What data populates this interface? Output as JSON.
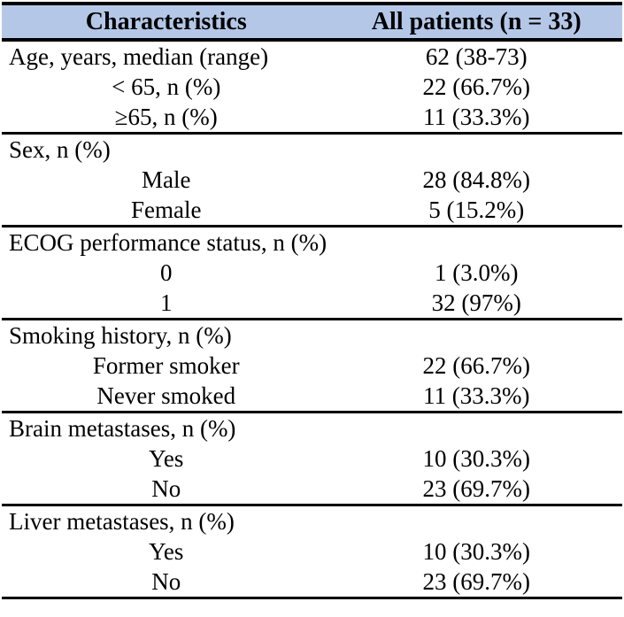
{
  "colors": {
    "header_bg": "#b4c7e7",
    "border_color": "#000000"
  },
  "table": {
    "header": {
      "col1": "Characteristics",
      "col2": "All patients (n = 33)"
    },
    "sections": [
      {
        "rows": [
          {
            "label": "Age, years, median (range)",
            "value": "62 (38-73)"
          },
          {
            "label": "< 65, n (%)",
            "value": "22 (66.7%)"
          },
          {
            "label": "≥65, n (%)",
            "value": "11 (33.3%)"
          }
        ]
      },
      {
        "rows": [
          {
            "label": "Sex, n (%)",
            "value": ""
          },
          {
            "label": "Male",
            "value": "28 (84.8%)"
          },
          {
            "label": "Female",
            "value": "5 (15.2%)"
          }
        ]
      },
      {
        "rows": [
          {
            "label": "ECOG performance status, n (%)",
            "value": ""
          },
          {
            "label": "0",
            "value": "1 (3.0%)"
          },
          {
            "label": "1",
            "value": "32 (97%)"
          }
        ]
      },
      {
        "rows": [
          {
            "label": "Smoking history, n (%)",
            "value": ""
          },
          {
            "label": "Former smoker",
            "value": "22 (66.7%)"
          },
          {
            "label": "Never smoked",
            "value": "11 (33.3%)"
          }
        ]
      },
      {
        "rows": [
          {
            "label": "Brain metastases, n (%)",
            "value": ""
          },
          {
            "label": "Yes",
            "value": "10 (30.3%)"
          },
          {
            "label": "No",
            "value": "23 (69.7%)"
          }
        ]
      },
      {
        "rows": [
          {
            "label": "Liver metastases, n (%)",
            "value": ""
          },
          {
            "label": "Yes",
            "value": "10 (30.3%)"
          },
          {
            "label": "No",
            "value": "23 (69.7%)"
          }
        ]
      }
    ]
  }
}
